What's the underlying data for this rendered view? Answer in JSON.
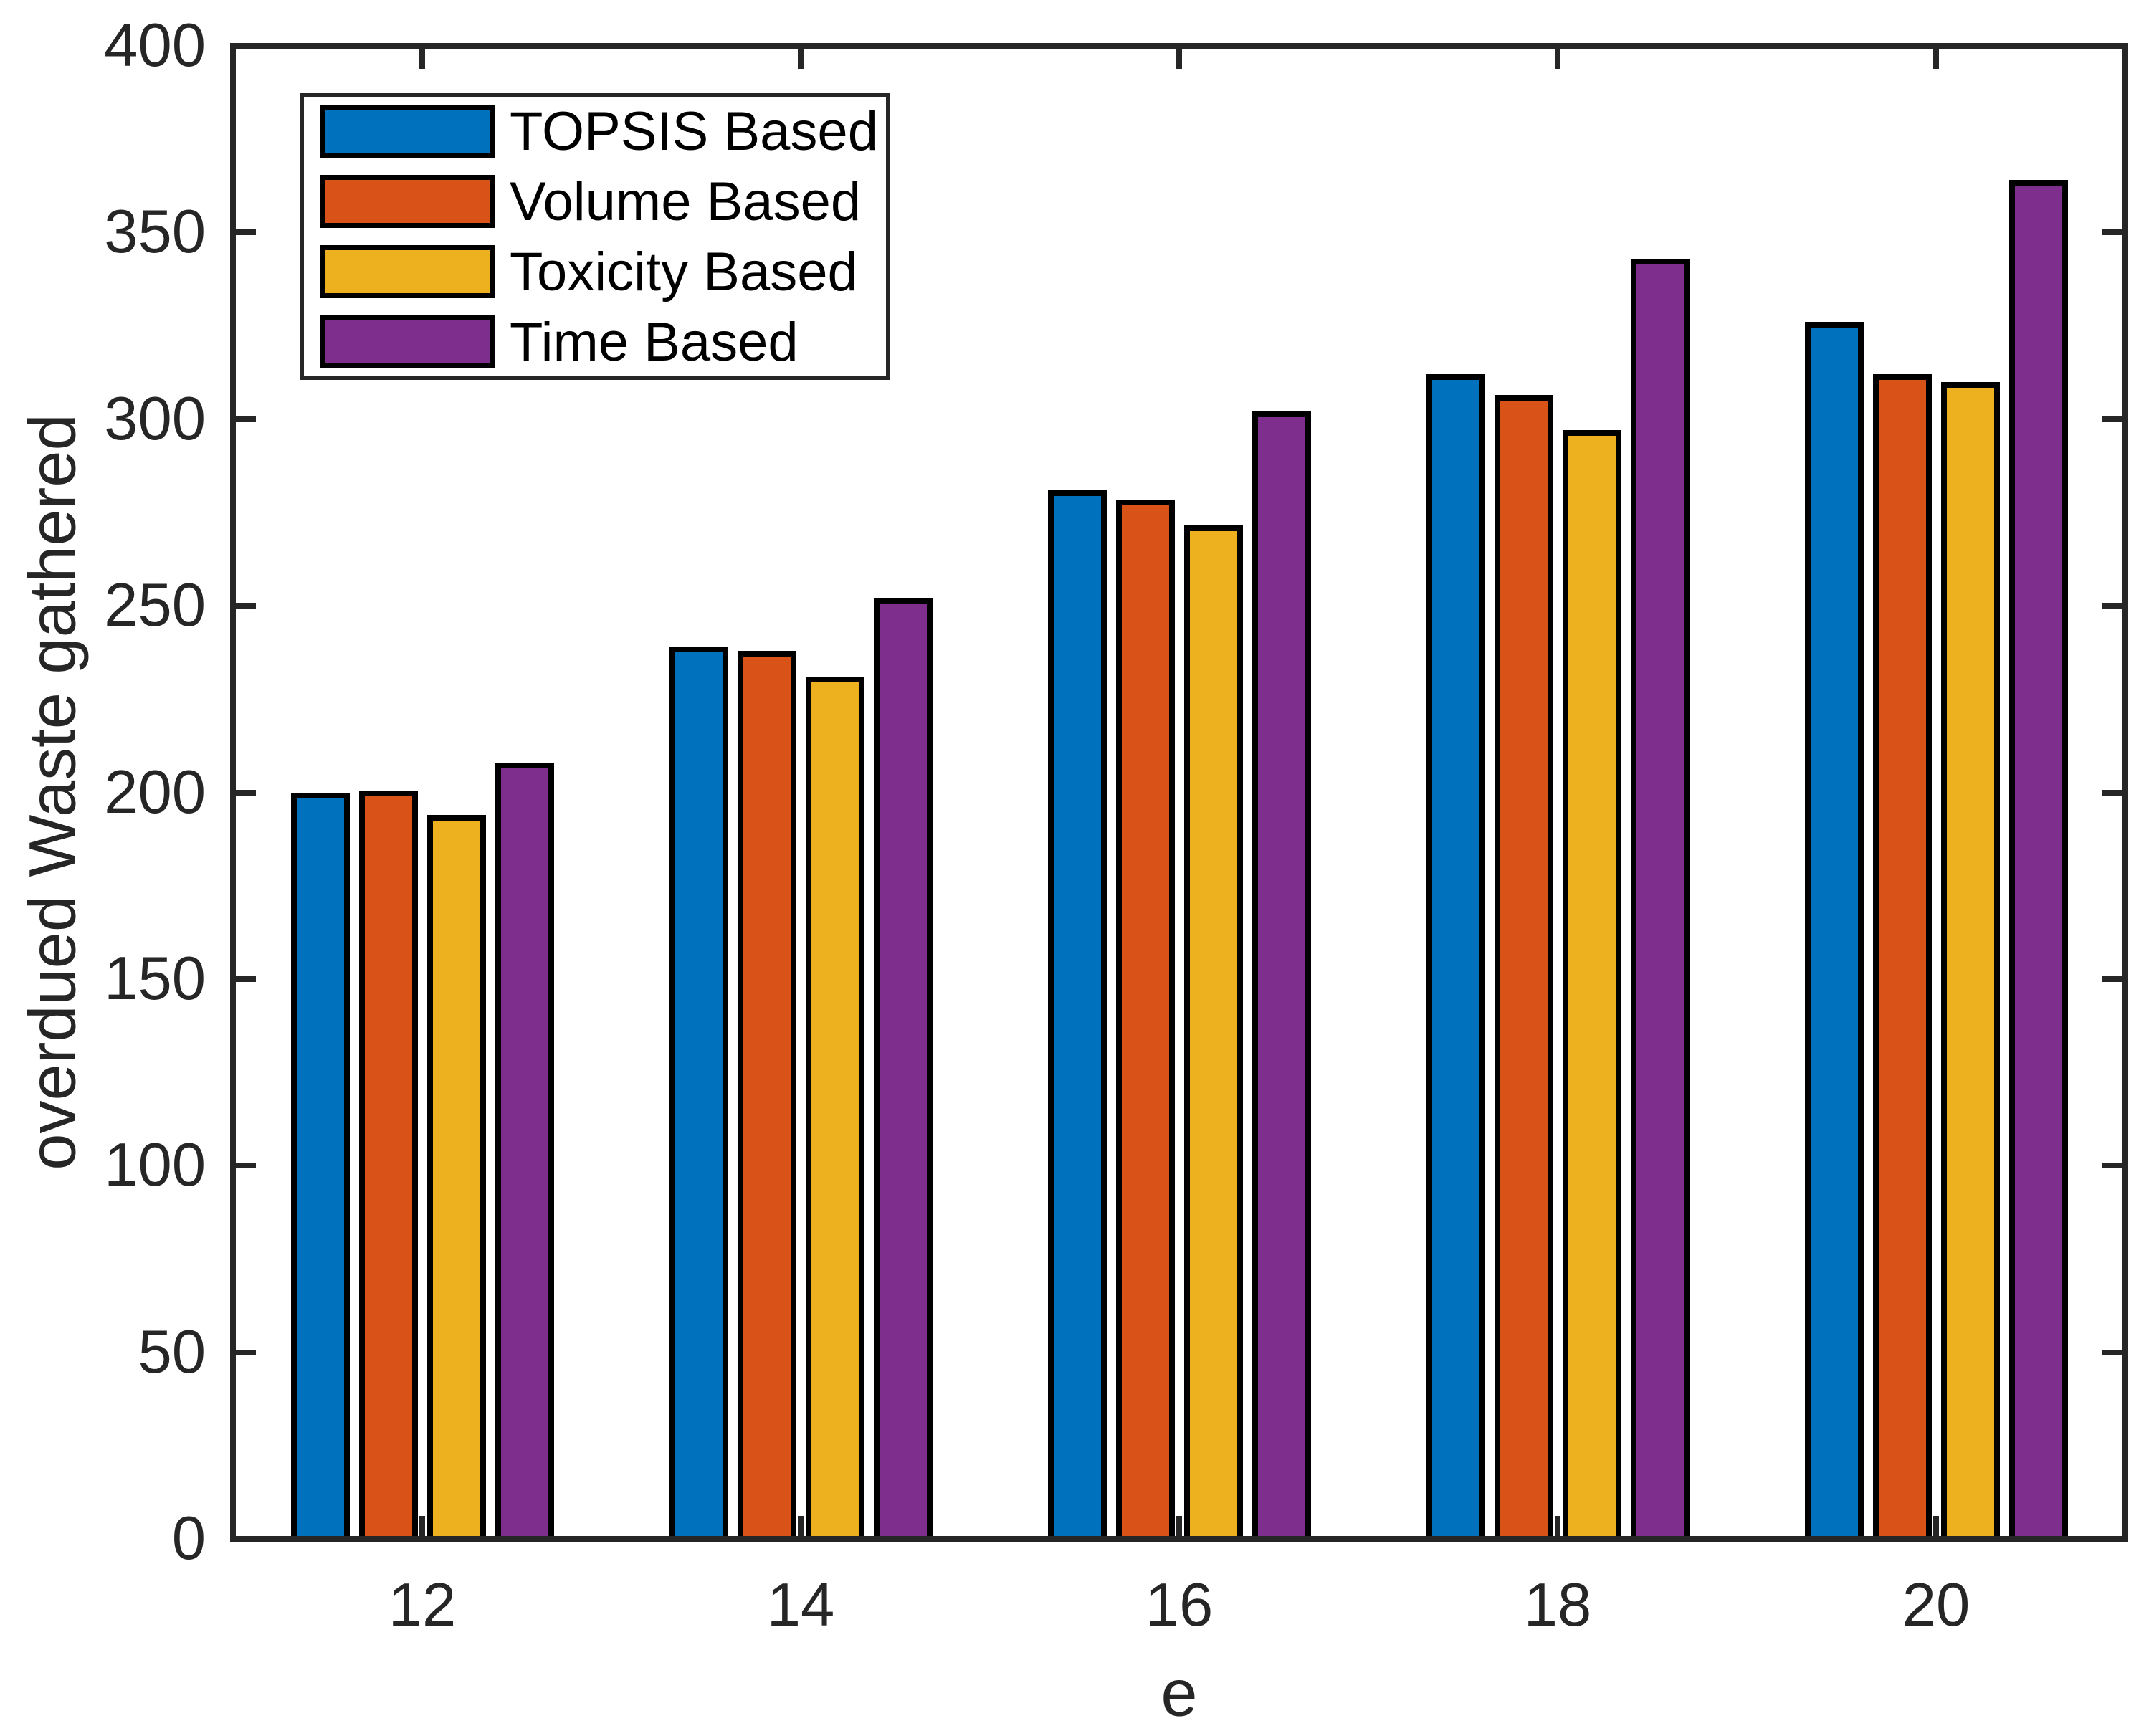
{
  "chart_data": {
    "type": "bar",
    "title": "",
    "xlabel": "e",
    "ylabel": "overdued Waste gathered",
    "categories": [
      "12",
      "14",
      "16",
      "18",
      "20"
    ],
    "series": [
      {
        "name": "TOPSIS Based",
        "color": "#0072BD",
        "values": [
          200,
          239,
          281,
          312,
          326
        ]
      },
      {
        "name": "Volume Based",
        "color": "#D95319",
        "values": [
          200.5,
          238,
          278.5,
          306.5,
          312
        ]
      },
      {
        "name": "Toxicity Based",
        "color": "#EDB120",
        "values": [
          194,
          231,
          271.5,
          297,
          310
        ]
      },
      {
        "name": "Time Based",
        "color": "#7E2F8E",
        "values": [
          208,
          252,
          302,
          343,
          364
        ]
      }
    ],
    "ylim": [
      0,
      400
    ],
    "ytick_step": 50,
    "yticks": [
      0,
      50,
      100,
      150,
      200,
      250,
      300,
      350,
      400
    ],
    "legend_position": "northwest",
    "grid": false,
    "bar_edge_color": "#000000",
    "axis_color": "#262626",
    "background": "#ffffff"
  }
}
